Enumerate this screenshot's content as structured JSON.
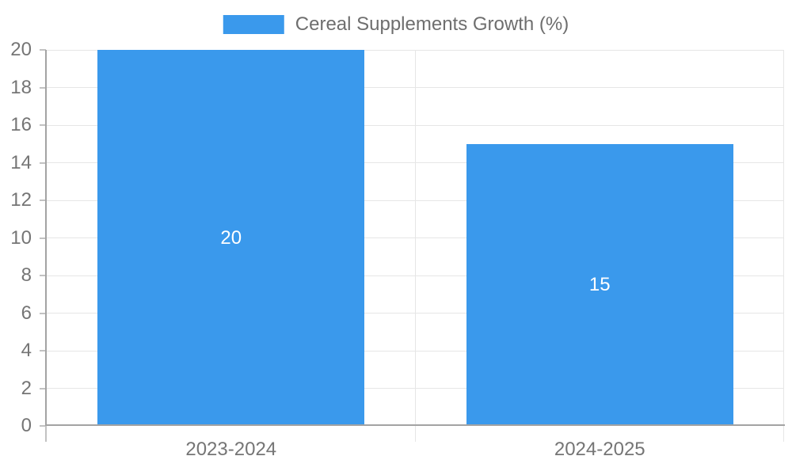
{
  "chart_data": {
    "type": "bar",
    "title": "",
    "legend": {
      "label": "Cereal Supplements Growth (%)",
      "position": "top"
    },
    "categories": [
      "2023-2024",
      "2024-2025"
    ],
    "series": [
      {
        "name": "Cereal Supplements Growth (%)",
        "values": [
          20,
          15
        ]
      }
    ],
    "value_labels": [
      "20",
      "15"
    ],
    "xlabel": "",
    "ylabel": "",
    "ylim": [
      0,
      20
    ],
    "yticks": [
      0,
      2,
      4,
      6,
      8,
      10,
      12,
      14,
      16,
      18,
      20
    ],
    "grid": "horizontal",
    "colors": {
      "bar": "#3a99ec",
      "gridline": "#e6e6e6",
      "axis": "#a3a3a3",
      "tick": "#c2c2c2",
      "axis_label": "#757575",
      "legend_label": "#6e6e6e",
      "value_label": "#ffffff",
      "background": "#ffffff"
    }
  }
}
